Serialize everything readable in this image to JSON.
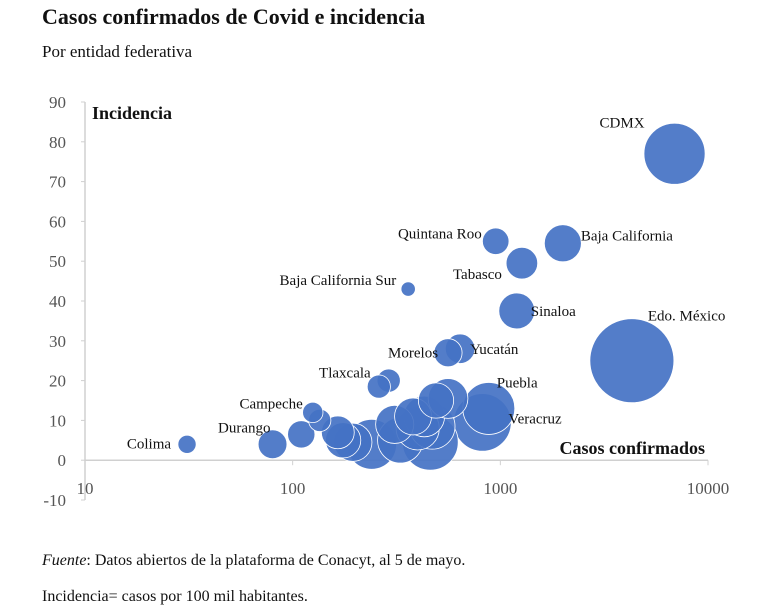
{
  "header": {
    "title": "Casos confirmados de Covid e incidencia",
    "subtitle": "Por entidad federativa"
  },
  "footer": {
    "source_label": "Fuente",
    "source_text": ": Datos abiertos de la plataforma de Conacyt, al 5 de mayo.",
    "definition": "Incidencia= casos por 100 mil habitantes."
  },
  "chart_data": {
    "type": "scatter",
    "subtype": "bubble",
    "title": "Casos confirmados de Covid e incidencia",
    "subtitle": "Por entidad federativa",
    "xlabel": "Casos confirmados",
    "ylabel": "Incidencia",
    "xscale": "log",
    "xlim": [
      10,
      10000
    ],
    "ylim": [
      -10,
      90
    ],
    "xticks": [
      "10",
      "100",
      "1000",
      "10000"
    ],
    "yticks": [
      "-10",
      "0",
      "10",
      "20",
      "30",
      "40",
      "50",
      "60",
      "70",
      "80",
      "90"
    ],
    "color": "#4472C4",
    "points": [
      {
        "label": "CDMX",
        "x": 6900,
        "y": 77,
        "size": 9000
      },
      {
        "label": "Edo. México",
        "x": 4300,
        "y": 25,
        "size": 17000
      },
      {
        "label": "Baja California",
        "x": 2000,
        "y": 54.5,
        "size": 3300
      },
      {
        "label": "Quintana Roo",
        "x": 950,
        "y": 55,
        "size": 1700
      },
      {
        "label": "Tabasco",
        "x": 1270,
        "y": 49.5,
        "size": 2400
      },
      {
        "label": "Sinaloa",
        "x": 1200,
        "y": 37.5,
        "size": 3100
      },
      {
        "label": "Baja California Sur",
        "x": 360,
        "y": 43,
        "size": 500
      },
      {
        "label": "Yucatán",
        "x": 640,
        "y": 28,
        "size": 2100
      },
      {
        "label": "Morelos",
        "x": 560,
        "y": 27,
        "size": 1900
      },
      {
        "label": "Puebla",
        "x": 880,
        "y": 13,
        "size": 6500
      },
      {
        "label": "Veracruz",
        "x": 820,
        "y": 9.5,
        "size": 8000
      },
      {
        "label": "Tlaxcala",
        "x": 290,
        "y": 20,
        "size": 1300
      },
      {
        "label": "",
        "x": 260,
        "y": 18.5,
        "size": 1300
      },
      {
        "label": "Campeche",
        "x": 125,
        "y": 12,
        "size": 1000
      },
      {
        "label": "",
        "x": 135,
        "y": 10,
        "size": 1200
      },
      {
        "label": "Durango",
        "x": 80,
        "y": 4,
        "size": 2000
      },
      {
        "label": "Colima",
        "x": 31,
        "y": 4,
        "size": 800
      },
      {
        "label": "",
        "x": 110,
        "y": 6.5,
        "size": 1800
      },
      {
        "label": "",
        "x": 165,
        "y": 7,
        "size": 2600
      },
      {
        "label": "",
        "x": 175,
        "y": 5,
        "size": 3000
      },
      {
        "label": "",
        "x": 195,
        "y": 4.5,
        "size": 3500
      },
      {
        "label": "",
        "x": 240,
        "y": 4,
        "size": 6000
      },
      {
        "label": "",
        "x": 310,
        "y": 9,
        "size": 3500
      },
      {
        "label": "",
        "x": 330,
        "y": 5,
        "size": 5000
      },
      {
        "label": "",
        "x": 380,
        "y": 11,
        "size": 3300
      },
      {
        "label": "",
        "x": 400,
        "y": 8,
        "size": 4500
      },
      {
        "label": "",
        "x": 430,
        "y": 11,
        "size": 4000
      },
      {
        "label": "",
        "x": 460,
        "y": 4.5,
        "size": 7500
      },
      {
        "label": "",
        "x": 470,
        "y": 8.5,
        "size": 5000
      },
      {
        "label": "",
        "x": 490,
        "y": 15,
        "size": 3000
      },
      {
        "label": "",
        "x": 560,
        "y": 15.5,
        "size": 3800
      }
    ]
  }
}
